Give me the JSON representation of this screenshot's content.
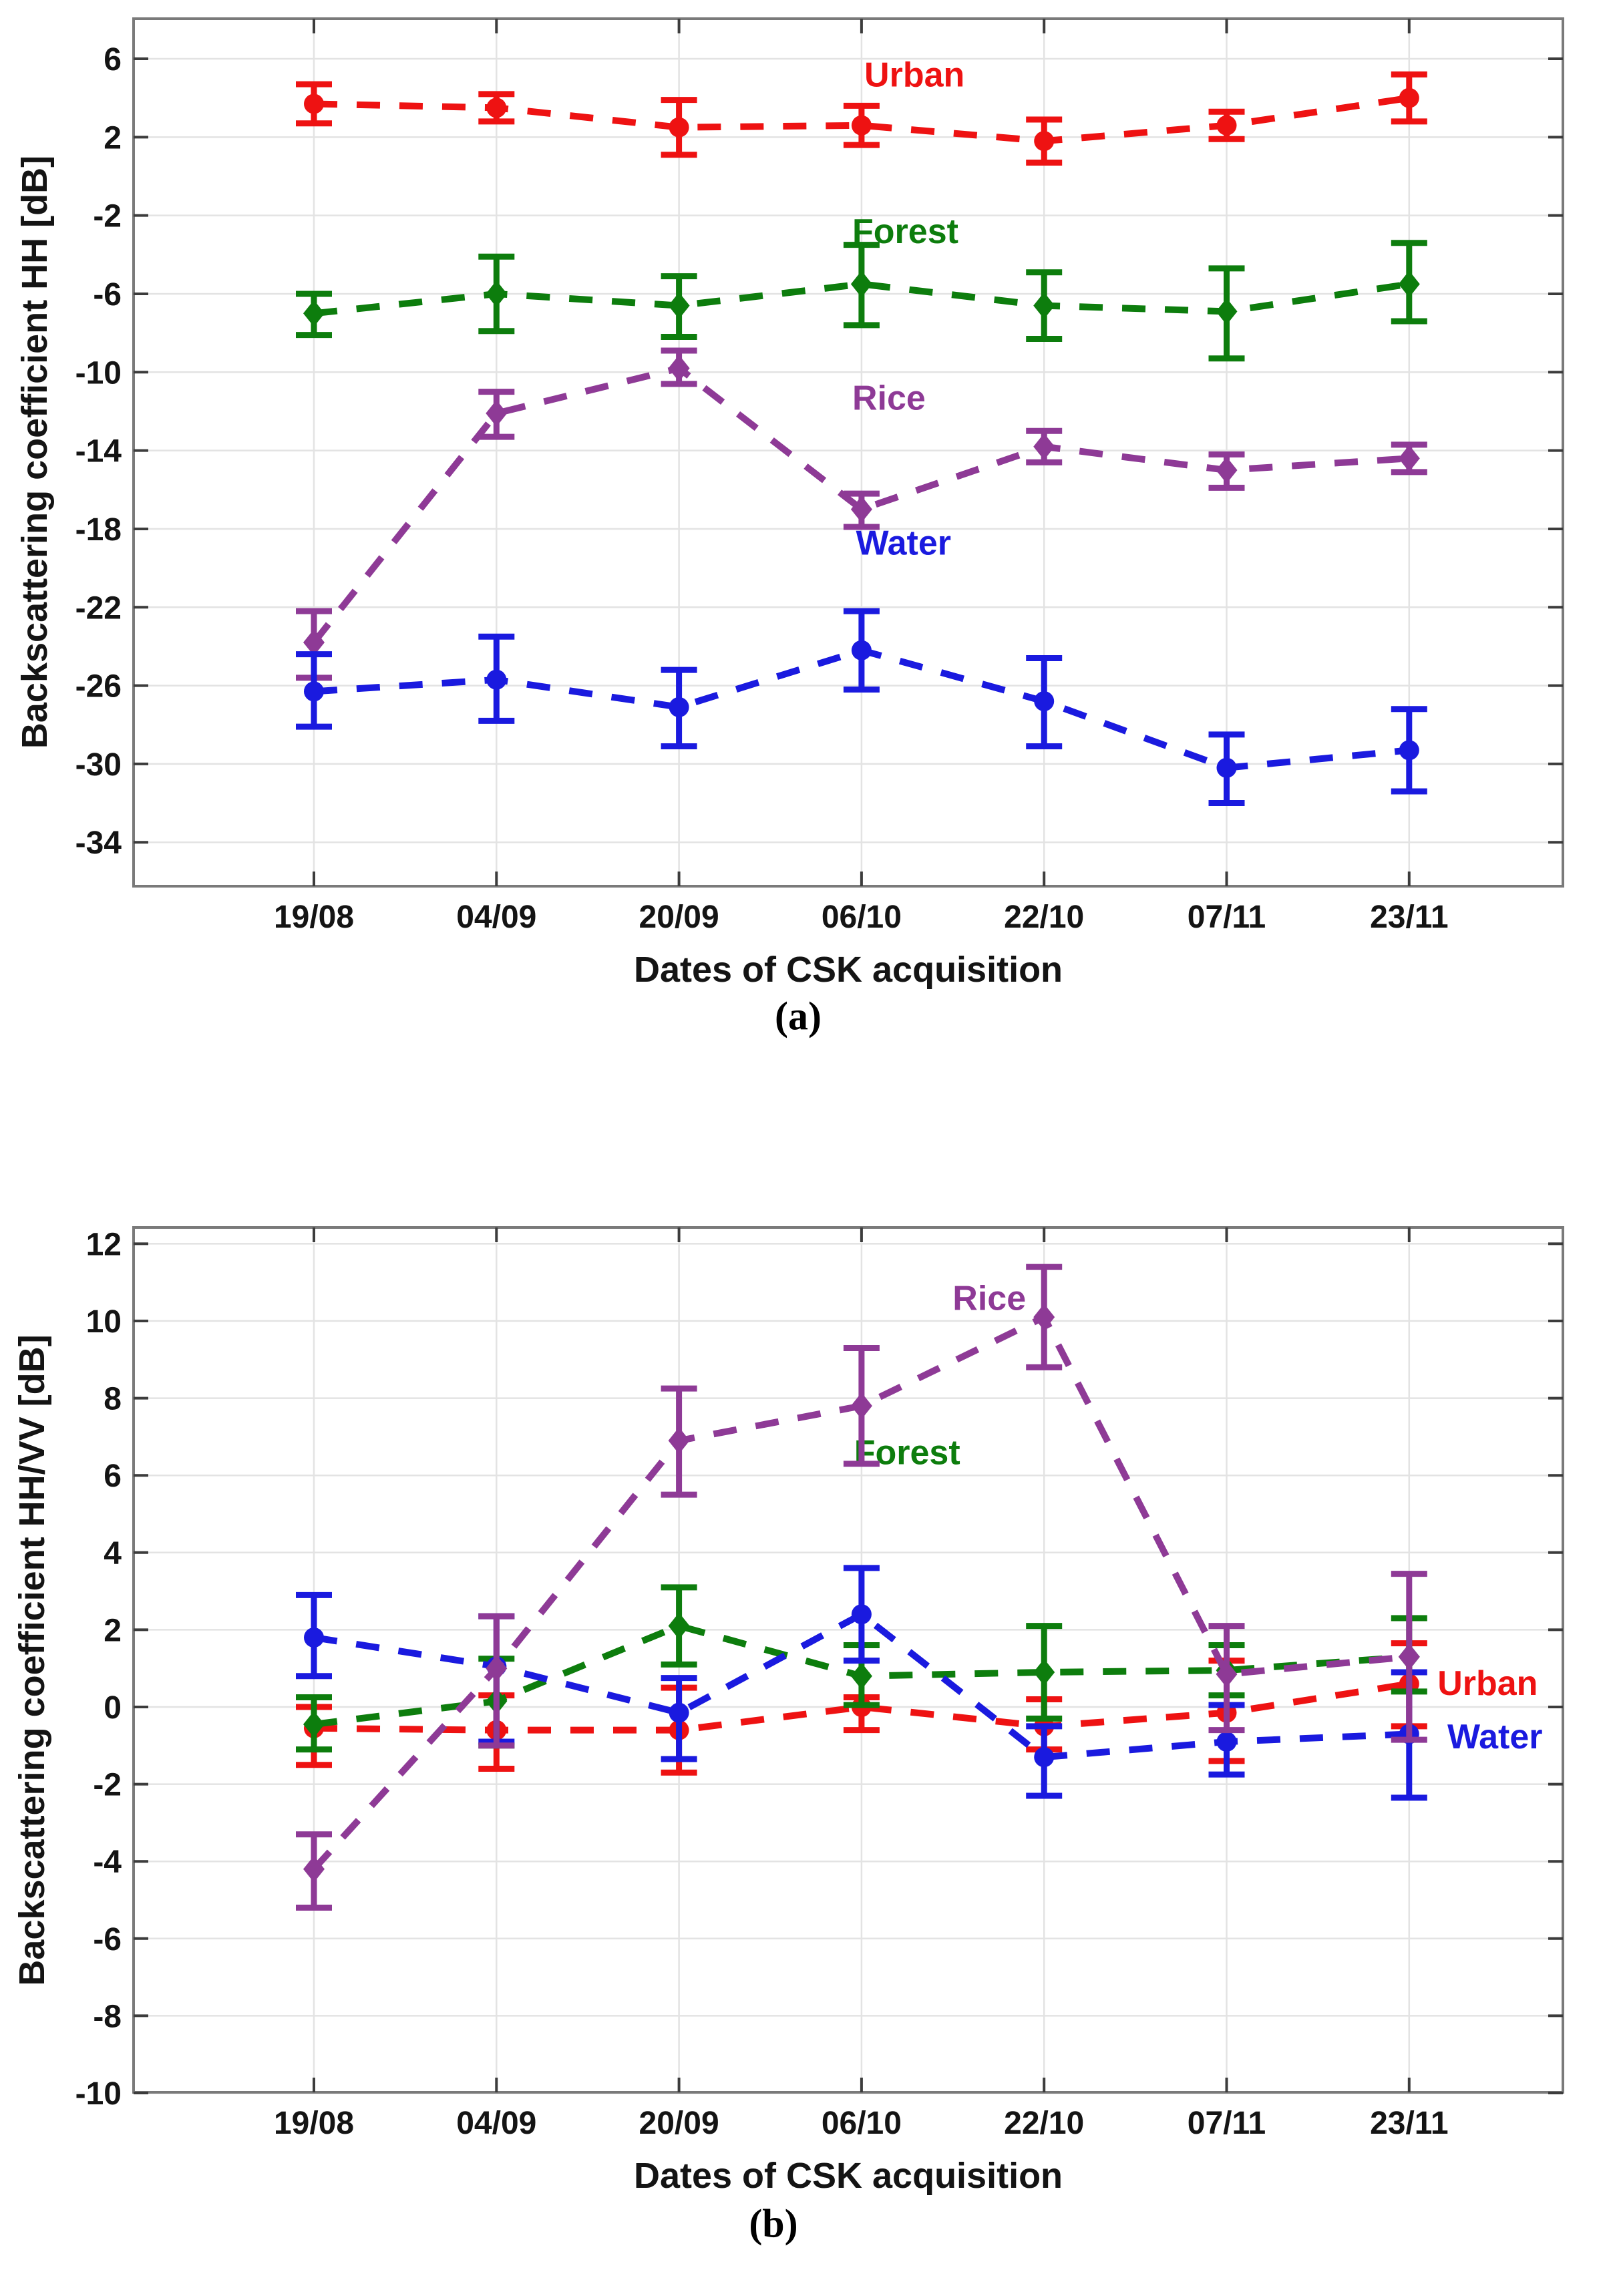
{
  "page": {
    "background": "#ffffff"
  },
  "styles": {
    "grid_color": "#e3e3e3",
    "spine_color": "#7a7a7a",
    "tick_color": "#3c3c3c",
    "text_color": "#141414",
    "urban_color": "#ee1212",
    "forest_color": "#0d7d0d",
    "rice_color": "#8e3a96",
    "water_color": "#1a1adf"
  },
  "chart_data": [
    {
      "type": "line",
      "id": "a",
      "caption": "(a)",
      "xlabel": "Dates of CSK acquisition",
      "ylabel": "Backscattering coefficient HH [dB]",
      "categories": [
        "19/08",
        "04/09",
        "20/09",
        "06/10",
        "22/10",
        "07/11",
        "23/11"
      ],
      "yticks": [
        6,
        2,
        -2,
        -6,
        -10,
        -14,
        -18,
        -22,
        -26,
        -30,
        -34
      ],
      "ylim": [
        -36.3,
        8.1
      ],
      "grid": true,
      "legend_position": "inline-labels",
      "line_style": "dashed",
      "series": [
        {
          "name": "Urban",
          "color": "#ee1212",
          "marker": "circle",
          "values": [
            3.7,
            3.5,
            2.5,
            2.6,
            1.8,
            2.6,
            4.0
          ],
          "err_low": [
            2.7,
            2.8,
            1.1,
            1.6,
            0.7,
            1.9,
            2.8
          ],
          "err_high": [
            4.7,
            4.2,
            3.9,
            3.6,
            2.9,
            3.3,
            5.2
          ],
          "label_anchor": {
            "x": 3.29,
            "y": 5.2
          }
        },
        {
          "name": "Forest",
          "color": "#0d7d0d",
          "marker": "diamond",
          "values": [
            -7.0,
            -6.0,
            -6.6,
            -5.5,
            -6.6,
            -6.9,
            -5.5
          ],
          "err_low": [
            -8.1,
            -7.9,
            -8.2,
            -7.6,
            -8.3,
            -9.3,
            -7.4
          ],
          "err_high": [
            -6.0,
            -4.1,
            -5.1,
            -3.5,
            -4.9,
            -4.7,
            -3.4
          ],
          "label_anchor": {
            "x": 3.24,
            "y": -2.8
          }
        },
        {
          "name": "Rice",
          "color": "#8e3a96",
          "marker": "diamond",
          "values": [
            -23.8,
            -12.1,
            -9.8,
            -17.0,
            -13.8,
            -15.0,
            -14.4
          ],
          "err_low": [
            -25.6,
            -13.3,
            -10.6,
            -17.9,
            -14.6,
            -15.9,
            -15.1
          ],
          "err_high": [
            -22.2,
            -11.0,
            -8.9,
            -16.2,
            -13.0,
            -14.2,
            -13.7
          ],
          "label_anchor": {
            "x": 3.15,
            "y": -11.3
          }
        },
        {
          "name": "Water",
          "color": "#1a1adf",
          "marker": "circle",
          "values": [
            -26.3,
            -25.7,
            -27.1,
            -24.2,
            -26.8,
            -30.2,
            -29.3
          ],
          "err_low": [
            -28.1,
            -27.8,
            -29.1,
            -26.2,
            -29.1,
            -32.0,
            -31.4
          ],
          "err_high": [
            -24.4,
            -23.5,
            -25.2,
            -22.2,
            -24.6,
            -28.5,
            -27.2
          ],
          "label_anchor": {
            "x": 3.23,
            "y": -18.7
          }
        }
      ]
    },
    {
      "type": "line",
      "id": "b",
      "caption": "(b)",
      "xlabel": "Dates of CSK acquisition",
      "ylabel": "Backscattering coefficient HH/VV [dB]",
      "categories": [
        "19/08",
        "04/09",
        "20/09",
        "06/10",
        "22/10",
        "07/11",
        "23/11"
      ],
      "yticks": [
        12,
        10,
        8,
        6,
        4,
        2,
        0,
        -2,
        -4,
        -6,
        -8,
        -10
      ],
      "ylim": [
        -10,
        12.4
      ],
      "grid": true,
      "legend_position": "inline-labels",
      "line_style": "dashed",
      "series": [
        {
          "name": "Urban",
          "color": "#ee1212",
          "marker": "circle",
          "values": [
            -0.55,
            -0.6,
            -0.6,
            0.0,
            -0.5,
            -0.15,
            0.6
          ],
          "err_low": [
            -1.5,
            -1.6,
            -1.7,
            -0.6,
            -1.1,
            -1.4,
            -0.5
          ],
          "err_high": [
            0.0,
            0.3,
            0.5,
            0.25,
            0.2,
            1.2,
            1.65
          ],
          "label_anchor": {
            "x": 6.43,
            "y": 0.62
          }
        },
        {
          "name": "Forest",
          "color": "#0d7d0d",
          "marker": "diamond",
          "values": [
            -0.45,
            0.15,
            2.1,
            0.8,
            0.9,
            0.95,
            1.3
          ],
          "err_low": [
            -1.1,
            -1.0,
            1.1,
            0.05,
            -0.3,
            0.3,
            0.4
          ],
          "err_high": [
            0.25,
            1.25,
            3.1,
            1.6,
            2.1,
            1.6,
            2.3
          ],
          "label_anchor": {
            "x": 3.25,
            "y": 6.6
          }
        },
        {
          "name": "Water",
          "color": "#1a1adf",
          "marker": "circle",
          "values": [
            1.8,
            1.05,
            -0.15,
            2.4,
            -1.3,
            -0.9,
            -0.7
          ],
          "err_low": [
            0.8,
            -0.9,
            -1.35,
            1.2,
            -2.3,
            -1.75,
            -2.35
          ],
          "err_high": [
            2.9,
            2.35,
            0.75,
            3.6,
            -0.5,
            0.05,
            0.9
          ],
          "label_anchor": {
            "x": 6.47,
            "y": -0.76
          }
        },
        {
          "name": "Rice",
          "color": "#8e3a96",
          "marker": "diamond",
          "values": [
            -4.2,
            1.0,
            6.9,
            7.8,
            10.1,
            0.85,
            1.3
          ],
          "err_low": [
            -5.2,
            -1.0,
            5.5,
            6.3,
            8.8,
            -0.6,
            -0.85
          ],
          "err_high": [
            -3.3,
            2.35,
            8.25,
            9.3,
            11.4,
            2.1,
            3.45
          ],
          "label_anchor": {
            "x": 3.7,
            "y": 10.6
          }
        }
      ]
    }
  ]
}
